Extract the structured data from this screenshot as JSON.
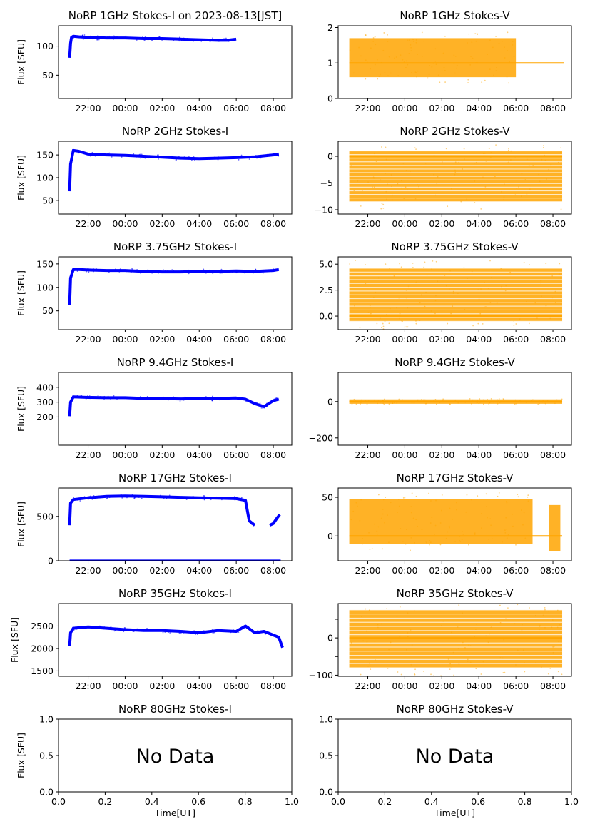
{
  "figure": {
    "time_axis_label": "Time[UT]"
  },
  "chart_data": [
    {
      "id": "1G-I",
      "type": "scatter",
      "title": "NoRP 1GHz Stokes-I on 2023-08-13[JST]",
      "ylabel": "Flux [SFU]",
      "color": "#0000ff",
      "ylim": [
        10,
        135
      ],
      "yticks": [
        50,
        100
      ],
      "xticks": [
        "22:00",
        "00:00",
        "02:00",
        "04:00",
        "06:00",
        "08:00"
      ],
      "series": [
        {
          "x": [
            -3.0,
            -2.95,
            -2.9,
            -2.8,
            -2.5,
            -2.0,
            -1.0,
            0.0,
            1.0,
            2.0,
            3.0,
            4.0,
            5.0,
            5.5,
            6.0
          ],
          "y": [
            80,
            105,
            115,
            117,
            116,
            115,
            114,
            114,
            113,
            113,
            112,
            111,
            110,
            110,
            112
          ]
        }
      ],
      "end_hour": 6.0
    },
    {
      "id": "1G-V",
      "type": "scatter",
      "title": "NoRP 1GHz Stokes-V",
      "ylabel": "",
      "color": "#ffa500",
      "ylim": [
        0,
        2.05
      ],
      "yticks": [
        0,
        1,
        2
      ],
      "xticks": [
        "22:00",
        "00:00",
        "02:00",
        "04:00",
        "06:00",
        "08:00"
      ],
      "series": [
        {
          "x": [
            -3.0,
            -2.5,
            -2.0,
            -1.5,
            -1.0,
            0.0,
            1.0,
            2.0,
            3.0,
            4.0,
            5.0,
            5.5,
            6.0
          ],
          "y": [
            1.2,
            1.3,
            1.1,
            1.0,
            1.1,
            1.0,
            1.05,
            1.0,
            1.0,
            1.1,
            1.2,
            1.1,
            1.0
          ]
        }
      ],
      "end_hour": 8.6
    },
    {
      "id": "2G-I",
      "type": "scatter",
      "title": "NoRP 2GHz Stokes-I",
      "ylabel": "Flux [SFU]",
      "color": "#0000ff",
      "ylim": [
        20,
        180
      ],
      "yticks": [
        50,
        100,
        150
      ],
      "xticks": [
        "22:00",
        "00:00",
        "02:00",
        "04:00",
        "06:00",
        "08:00"
      ],
      "series": [
        {
          "x": [
            -3.0,
            -2.95,
            -2.8,
            -2.5,
            -2.0,
            -1.0,
            0.0,
            1.0,
            2.0,
            3.0,
            4.0,
            5.0,
            6.0,
            7.0,
            8.0,
            8.3
          ],
          "y": [
            70,
            130,
            160,
            158,
            152,
            150,
            149,
            147,
            145,
            143,
            142,
            143,
            144,
            146,
            150,
            152
          ]
        }
      ],
      "end_hour": 8.35
    },
    {
      "id": "2G-V",
      "type": "scatter",
      "title": "NoRP 2GHz Stokes-V",
      "ylabel": "",
      "color": "#ffa500",
      "ylim": [
        -10.8,
        2.8
      ],
      "yticks": [
        -10,
        -5,
        0
      ],
      "xticks": [
        "22:00",
        "00:00",
        "02:00",
        "04:00",
        "06:00",
        "08:00"
      ],
      "series": [
        {
          "x": [
            -3.0,
            8.5
          ],
          "y": [
            -3,
            -3
          ]
        }
      ],
      "end_hour": 8.5
    },
    {
      "id": "375G-I",
      "type": "scatter",
      "title": "NoRP 3.75GHz Stokes-I",
      "ylabel": "Flux [SFU]",
      "color": "#0000ff",
      "ylim": [
        10,
        165
      ],
      "yticks": [
        50,
        100,
        150
      ],
      "xticks": [
        "22:00",
        "00:00",
        "02:00",
        "04:00",
        "06:00",
        "08:00"
      ],
      "series": [
        {
          "x": [
            -3.0,
            -2.95,
            -2.8,
            -2.5,
            -2.0,
            -1.0,
            0.0,
            1.0,
            2.0,
            3.0,
            4.0,
            5.0,
            6.0,
            7.0,
            8.0,
            8.3
          ],
          "y": [
            62,
            120,
            138,
            138,
            137,
            136,
            136,
            134,
            133,
            133,
            134,
            134,
            135,
            134,
            136,
            138
          ]
        }
      ],
      "end_hour": 8.35
    },
    {
      "id": "375G-V",
      "type": "scatter",
      "title": "NoRP 3.75GHz Stokes-V",
      "ylabel": "",
      "color": "#ffa500",
      "ylim": [
        -1.3,
        5.7
      ],
      "yticks": [
        0,
        2.5,
        5
      ],
      "ytick_labels": [
        "0.0",
        "2.5",
        "5.0"
      ],
      "xticks": [
        "22:00",
        "00:00",
        "02:00",
        "04:00",
        "06:00",
        "08:00"
      ],
      "series": [
        {
          "x": [
            -3.0,
            8.5
          ],
          "y": [
            2,
            2
          ]
        }
      ],
      "end_hour": 8.5
    },
    {
      "id": "94G-I",
      "type": "scatter",
      "title": "NoRP 9.4GHz Stokes-I",
      "ylabel": "Flux [SFU]",
      "color": "#0000ff",
      "ylim": [
        10,
        500
      ],
      "yticks": [
        200,
        300,
        400
      ],
      "xticks": [
        "22:00",
        "00:00",
        "02:00",
        "04:00",
        "06:00",
        "08:00"
      ],
      "series": [
        {
          "x": [
            -3.0,
            -2.95,
            -2.8,
            -2.0,
            -1.0,
            0.0,
            1.0,
            2.0,
            3.0,
            4.0,
            5.0,
            6.0,
            6.5,
            7.0,
            7.5,
            8.0,
            8.3
          ],
          "y": [
            205,
            300,
            335,
            332,
            330,
            330,
            325,
            323,
            322,
            324,
            325,
            328,
            320,
            290,
            270,
            310,
            320
          ]
        }
      ],
      "end_hour": 8.35
    },
    {
      "id": "94G-V",
      "type": "scatter",
      "title": "NoRP 9.4GHz Stokes-V",
      "ylabel": "",
      "color": "#ffa500",
      "ylim": [
        -240,
        160
      ],
      "yticks": [
        -200,
        0
      ],
      "xticks": [
        "22:00",
        "00:00",
        "02:00",
        "04:00",
        "06:00",
        "08:00"
      ],
      "series": [
        {
          "x": [
            -3.0,
            8.5
          ],
          "y": [
            0,
            0
          ]
        }
      ],
      "end_hour": 8.5
    },
    {
      "id": "17G-I",
      "type": "scatter",
      "title": "NoRP 17GHz Stokes-I",
      "ylabel": "Flux [SFU]",
      "color": "#0000ff",
      "ylim": [
        0,
        820
      ],
      "yticks": [
        0,
        500
      ],
      "xticks": [
        "22:00",
        "00:00",
        "02:00",
        "04:00",
        "06:00",
        "08:00"
      ],
      "series": [
        {
          "x": [
            -3.0,
            -2.95,
            -2.8,
            -2.0,
            -1.0,
            0.0,
            1.0,
            2.0,
            3.0,
            4.0,
            5.0,
            6.0,
            6.5,
            6.7,
            7.0
          ],
          "y": [
            400,
            650,
            690,
            710,
            725,
            730,
            725,
            720,
            715,
            710,
            705,
            700,
            680,
            450,
            400
          ]
        },
        {
          "x": [
            7.8,
            8.0,
            8.2,
            8.35
          ],
          "y": [
            400,
            420,
            480,
            520
          ]
        }
      ],
      "end_hour": 8.4
    },
    {
      "id": "17G-V",
      "type": "scatter",
      "title": "NoRP 17GHz Stokes-V",
      "ylabel": "",
      "color": "#ffa500",
      "ylim": [
        -32,
        62
      ],
      "yticks": [
        0,
        50
      ],
      "xticks": [
        "22:00",
        "00:00",
        "02:00",
        "04:00",
        "06:00",
        "08:00"
      ],
      "series": [
        {
          "x": [
            -3.0,
            8.5
          ],
          "y": [
            18,
            18
          ]
        }
      ],
      "end_hour": 8.5
    },
    {
      "id": "35G-I",
      "type": "scatter",
      "title": "NoRP 35GHz Stokes-I",
      "ylabel": "Flux [SFU]",
      "color": "#0000ff",
      "ylim": [
        1380,
        3000
      ],
      "yticks": [
        1500,
        2000,
        2500
      ],
      "xticks": [
        "22:00",
        "00:00",
        "02:00",
        "04:00",
        "06:00",
        "08:00"
      ],
      "series": [
        {
          "x": [
            -3.0,
            -2.95,
            -2.8,
            -2.0,
            -1.0,
            0.0,
            1.0,
            2.0,
            3.0,
            4.0,
            5.0,
            6.0,
            6.5,
            7.0,
            7.5,
            8.0,
            8.3,
            8.5
          ],
          "y": [
            2050,
            2350,
            2450,
            2480,
            2450,
            2420,
            2400,
            2400,
            2380,
            2350,
            2400,
            2380,
            2500,
            2350,
            2380,
            2300,
            2250,
            2020
          ]
        }
      ],
      "end_hour": 8.55
    },
    {
      "id": "35G-V",
      "type": "scatter",
      "title": "NoRP 35GHz Stokes-V",
      "ylabel": "",
      "color": "#ffa500",
      "ylim": [
        -103,
        92
      ],
      "yticks": [
        -100,
        -50,
        0,
        50
      ],
      "ytick_labels": [
        "−100",
        "",
        "0",
        ""
      ],
      "xticks": [
        "22:00",
        "00:00",
        "02:00",
        "04:00",
        "06:00",
        "08:00"
      ],
      "series": [
        {
          "x": [
            -3.0,
            8.5
          ],
          "y": [
            0,
            0
          ]
        }
      ],
      "end_hour": 8.5
    },
    {
      "id": "80G-I",
      "type": "scatter",
      "title": "NoRP 80GHz Stokes-I",
      "ylabel": "Flux [SFU]",
      "xlabel": "Time[UT]",
      "ylim": [
        0,
        1
      ],
      "xlim": [
        0,
        1
      ],
      "yticks": [
        0,
        0.5,
        1
      ],
      "ytick_labels": [
        "0.0",
        "0.5",
        "1.0"
      ],
      "xticks": [
        "0.0",
        "0.2",
        "0.4",
        "0.6",
        "0.8",
        "1.0"
      ],
      "annotation": "No Data",
      "series": []
    },
    {
      "id": "80G-V",
      "type": "scatter",
      "title": "NoRP 80GHz Stokes-V",
      "ylabel": "",
      "xlabel": "Time[UT]",
      "ylim": [
        0,
        1
      ],
      "xlim": [
        0,
        1
      ],
      "yticks": [
        0,
        0.5,
        1
      ],
      "ytick_labels": [
        "0.0",
        "0.5",
        "1.0"
      ],
      "xticks": [
        "0.0",
        "0.2",
        "0.4",
        "0.6",
        "0.8",
        "1.0"
      ],
      "annotation": "No Data",
      "series": []
    }
  ]
}
